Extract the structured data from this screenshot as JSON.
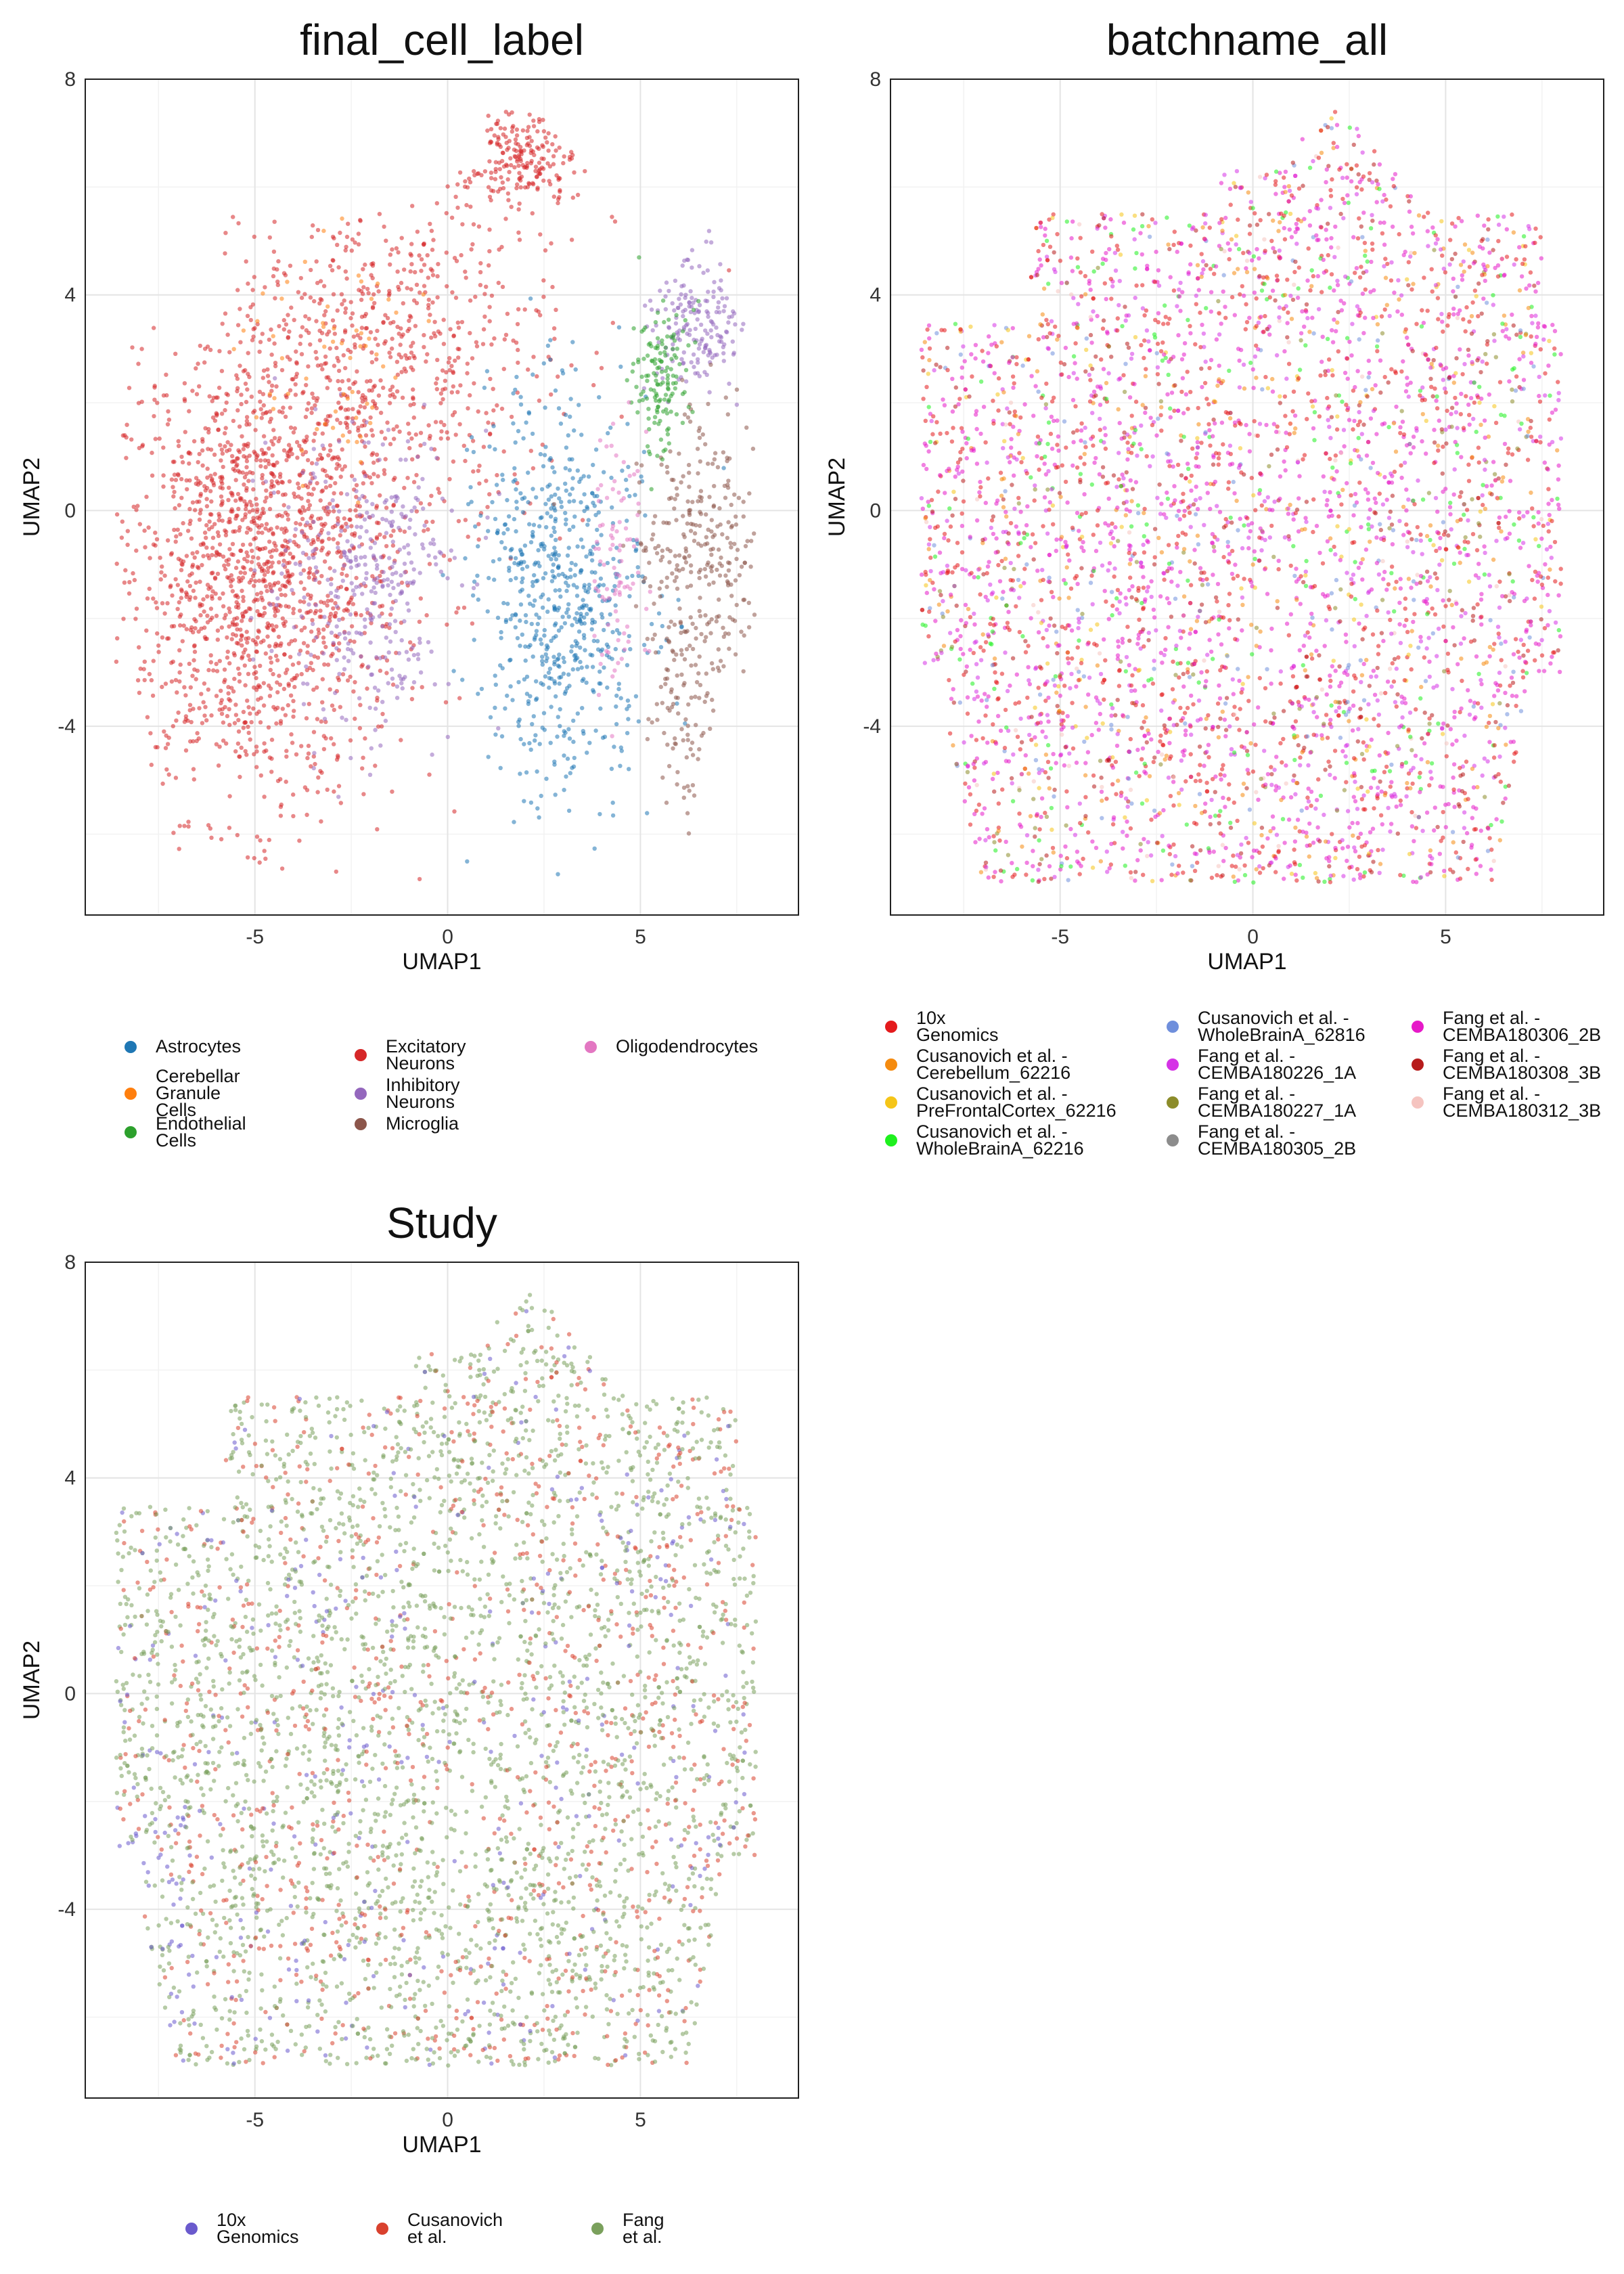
{
  "chart_data": [
    {
      "type": "scatter",
      "title": "final_cell_label",
      "xlabel": "UMAP1",
      "ylabel": "UMAP2",
      "xticks": [
        "-5",
        "0",
        "5"
      ],
      "yticks": [
        "-4",
        "0",
        "4",
        "8"
      ],
      "xlim": [
        -9.4,
        9.1
      ],
      "ylim": [
        -7.5,
        8
      ],
      "grid": true,
      "legend_position": "bottom",
      "series": [
        {
          "name": "Astrocytes",
          "color": "#1f77b4"
        },
        {
          "name": "Cerebellar Granule\nCells",
          "color": "#ff7f0e"
        },
        {
          "name": "Endothelial Cells",
          "color": "#2ca02c"
        },
        {
          "name": "Excitatory Neurons",
          "color": "#d62728"
        },
        {
          "name": "Inhibitory Neurons",
          "color": "#9467bd"
        },
        {
          "name": "Microglia",
          "color": "#8c564b"
        },
        {
          "name": "Oligodendrocytes",
          "color": "#e377c2"
        }
      ]
    },
    {
      "type": "scatter",
      "title": "batchname_all",
      "xlabel": "UMAP1",
      "ylabel": "UMAP2",
      "xticks": [
        "-5",
        "0",
        "5"
      ],
      "yticks": [
        "-4",
        "0",
        "4",
        "8"
      ],
      "xlim": [
        -9.4,
        9.1
      ],
      "ylim": [
        -7.5,
        8
      ],
      "grid": true,
      "legend_position": "bottom",
      "series": [
        {
          "name": "10x Genomics",
          "color": "#e41a1c"
        },
        {
          "name": "Cusanovich et al. -\nCerebellum_62216",
          "color": "#f58b0f"
        },
        {
          "name": "Cusanovich et al. -\nPreFrontalCortex_62216",
          "color": "#f5c518"
        },
        {
          "name": "Cusanovich et al. -\nWholeBrainA_62216",
          "color": "#1ef01e"
        },
        {
          "name": "Cusanovich et al. -\nWholeBrainA_62816",
          "color": "#6f8fdc"
        },
        {
          "name": "Fang et al. -\nCEMBA180226_1A",
          "color": "#d533e6"
        },
        {
          "name": "Fang et al. -\nCEMBA180227_1A",
          "color": "#8c8c2a"
        },
        {
          "name": "Fang et al. -\nCEMBA180305_2B",
          "color": "#8c8c8c"
        },
        {
          "name": "Fang et al. -\nCEMBA180306_2B",
          "color": "#e619c8"
        },
        {
          "name": "Fang et al. -\nCEMBA180308_3B",
          "color": "#b71c1c"
        },
        {
          "name": "Fang et al. -\nCEMBA180312_3B",
          "color": "#f5c4c0"
        }
      ]
    },
    {
      "type": "scatter",
      "title": "Study",
      "xlabel": "UMAP1",
      "ylabel": "UMAP2",
      "xticks": [
        "-5",
        "0",
        "5"
      ],
      "yticks": [
        "-4",
        "0",
        "4",
        "8"
      ],
      "xlim": [
        -9.4,
        9.1
      ],
      "ylim": [
        -7.5,
        8
      ],
      "grid": true,
      "legend_position": "bottom",
      "series": [
        {
          "name": "10x Genomics",
          "color": "#6a5acd"
        },
        {
          "name": "Cusanovich et al.",
          "color": "#d9412e"
        },
        {
          "name": "Fang et al.",
          "color": "#7aa05c"
        }
      ]
    }
  ]
}
